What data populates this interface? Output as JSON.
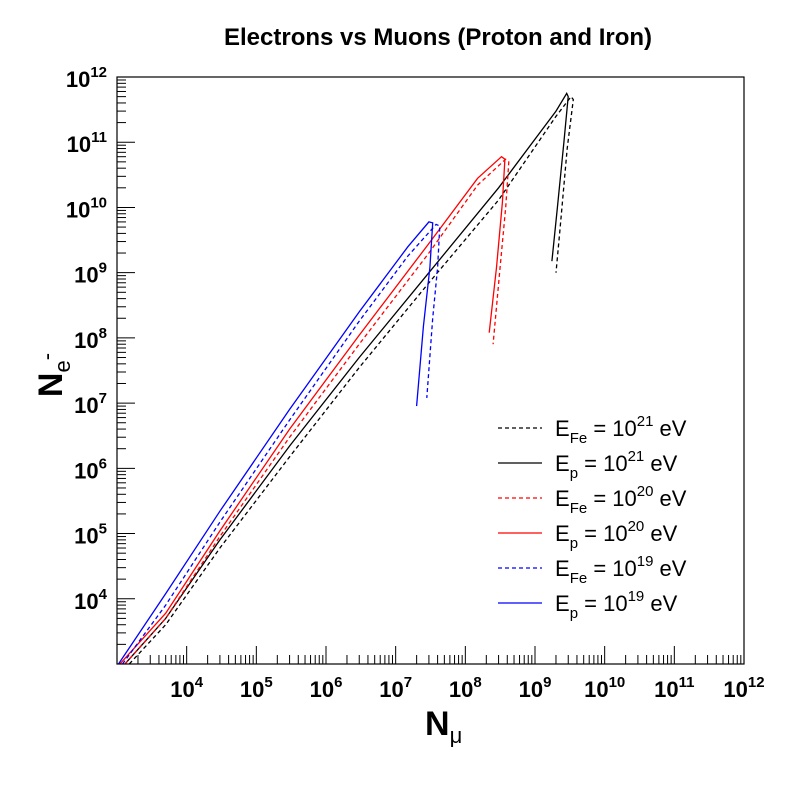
{
  "chart_data": {
    "type": "line",
    "title": "Electrons vs Muons (Proton and Iron)",
    "xlabel": "N",
    "xlabel_sub": "μ",
    "ylabel": "N",
    "ylabel_sub": "e",
    "ylabel_sup": "-",
    "x_scale": "log",
    "y_scale": "log",
    "xlim": [
      1000,
      1000000000000
    ],
    "ylim": [
      1000,
      1000000000000
    ],
    "x_tick_exponents": [
      4,
      5,
      6,
      7,
      8,
      9,
      10,
      11,
      12
    ],
    "y_tick_exponents": [
      4,
      5,
      6,
      7,
      8,
      9,
      10,
      11,
      12
    ],
    "tick_base": "10",
    "grid": false,
    "legend_position": "bottom-right",
    "series": [
      {
        "legend": {
          "base": "E",
          "sub": "Fe",
          "mid": " = 10",
          "sup": "21",
          "unit": " eV"
        },
        "color": "#000000",
        "dash": "dashed",
        "points": [
          [
            1500,
            1000
          ],
          [
            5000,
            4000
          ],
          [
            30000,
            60000
          ],
          [
            300000,
            1500000
          ],
          [
            3000000,
            35000000
          ],
          [
            30000000,
            700000000
          ],
          [
            300000000,
            13000000000
          ],
          [
            2000000000,
            250000000000
          ],
          [
            3300000000,
            500000000000
          ],
          [
            3550000000,
            450000000000
          ],
          [
            2900000000,
            80000000000
          ],
          [
            2300000000,
            5000000000
          ],
          [
            2000000000,
            1000000000
          ]
        ]
      },
      {
        "legend": {
          "base": "E",
          "sub": "p",
          "mid": " = 10",
          "sup": "21",
          "unit": " eV"
        },
        "color": "#000000",
        "dash": "solid",
        "points": [
          [
            1300,
            1000
          ],
          [
            5000,
            5000
          ],
          [
            30000,
            80000
          ],
          [
            300000,
            2200000
          ],
          [
            3000000,
            50000000
          ],
          [
            30000000,
            1000000000
          ],
          [
            300000000,
            20000000000
          ],
          [
            2000000000,
            300000000000
          ],
          [
            2850000000,
            560000000000
          ],
          [
            3000000000,
            500000000000
          ],
          [
            2600000000,
            100000000000
          ],
          [
            2100000000,
            10000000000
          ],
          [
            1750000000,
            1500000000
          ]
        ]
      },
      {
        "legend": {
          "base": "E",
          "sub": "Fe",
          "mid": " = 10",
          "sup": "20",
          "unit": " eV"
        },
        "color": "#ff0000",
        "dash": "dashed",
        "points": [
          [
            1300,
            1000
          ],
          [
            5000,
            5000
          ],
          [
            30000,
            90000
          ],
          [
            300000,
            3000000
          ],
          [
            3000000,
            80000000
          ],
          [
            30000000,
            2000000000
          ],
          [
            150000000,
            22000000000
          ],
          [
            380000000,
            55000000000
          ],
          [
            420000000,
            50000000000
          ],
          [
            380000000,
            10000000000
          ],
          [
            310000000,
            1000000000
          ],
          [
            250000000,
            80000000
          ]
        ]
      },
      {
        "legend": {
          "base": "E",
          "sub": "p",
          "mid": " = 10",
          "sup": "20",
          "unit": " eV"
        },
        "color": "#ff0000",
        "dash": "solid",
        "points": [
          [
            1100,
            1000
          ],
          [
            5000,
            6000
          ],
          [
            30000,
            110000
          ],
          [
            300000,
            4000000
          ],
          [
            3000000,
            110000000
          ],
          [
            30000000,
            2800000000
          ],
          [
            150000000,
            28000000000
          ],
          [
            330000000,
            60000000000
          ],
          [
            370000000,
            55000000000
          ],
          [
            340000000,
            12000000000
          ],
          [
            280000000,
            1200000000
          ],
          [
            220000000,
            120000000
          ]
        ]
      },
      {
        "legend": {
          "base": "E",
          "sub": "Fe",
          "mid": " = 10",
          "sup": "19",
          "unit": " eV"
        },
        "color": "#0000ff",
        "dash": "dashed",
        "points": [
          [
            1200,
            1000
          ],
          [
            5000,
            8000
          ],
          [
            30000,
            150000
          ],
          [
            300000,
            5500000
          ],
          [
            3000000,
            180000000
          ],
          [
            15000000,
            1800000000
          ],
          [
            38000000,
            5500000000
          ],
          [
            43000000,
            5200000000
          ],
          [
            40000000,
            1200000000
          ],
          [
            34000000,
            200000000
          ],
          [
            28000000,
            12000000
          ]
        ]
      },
      {
        "legend": {
          "base": "E",
          "sub": "p",
          "mid": " = 10",
          "sup": "19",
          "unit": " eV"
        },
        "color": "#0000ff",
        "dash": "solid",
        "points": [
          [
            1050,
            1000
          ],
          [
            5000,
            12000
          ],
          [
            30000,
            220000
          ],
          [
            300000,
            8000000
          ],
          [
            3000000,
            250000000
          ],
          [
            15000000,
            2500000000
          ],
          [
            30000000,
            6000000000
          ],
          [
            34000000,
            5800000000
          ],
          [
            31000000,
            1200000000
          ],
          [
            25000000,
            150000000
          ],
          [
            20000000,
            9000000
          ]
        ]
      }
    ]
  }
}
